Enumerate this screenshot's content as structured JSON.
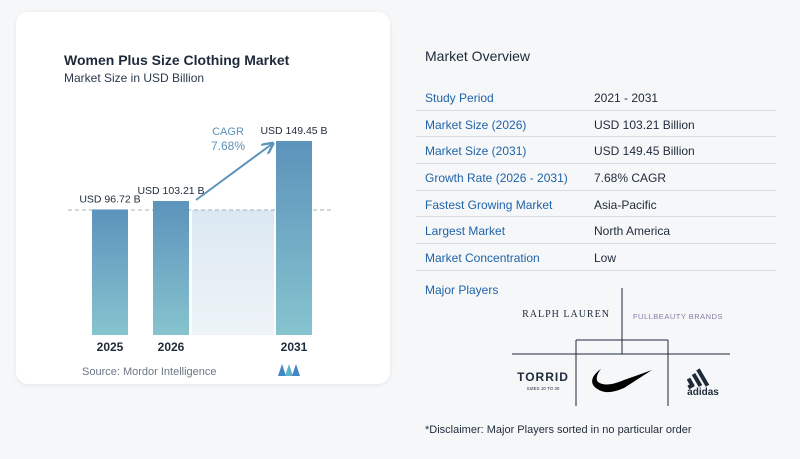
{
  "chart": {
    "title": "Women Plus Size Clothing Market",
    "subtitle": "Market Size in USD Billion",
    "source": "Source:  Mordor Intelligence"
  },
  "chart_data": {
    "type": "bar",
    "categories": [
      "2025",
      "2026",
      "2031"
    ],
    "values": [
      96.72,
      103.21,
      149.45
    ],
    "data_labels": [
      "USD 96.72 B",
      "USD 103.21 B",
      "USD 149.45 B"
    ],
    "annotation": {
      "label": "CAGR",
      "value": "7.68%"
    },
    "title": "Women Plus Size Clothing Market",
    "subtitle": "Market Size in USD Billion",
    "bar_color_top": "#5c93bb",
    "bar_color_bottom": "#86c4cf"
  },
  "overview": {
    "title": "Market Overview",
    "rows": [
      {
        "label": "Study Period",
        "value": "2021 - 2031"
      },
      {
        "label": "Market Size (2026)",
        "value": "USD 103.21 Billion"
      },
      {
        "label": "Market Size (2031)",
        "value": "USD 149.45 Billion"
      },
      {
        "label": "Growth Rate (2026 - 2031)",
        "value": "7.68% CAGR"
      },
      {
        "label": "Fastest Growing Market",
        "value": "Asia-Pacific"
      },
      {
        "label": "Largest Market",
        "value": "North America"
      },
      {
        "label": "Market Concentration",
        "value": "Low"
      }
    ]
  },
  "players": {
    "title": "Major Players",
    "ralph": "RALPH  LAUREN",
    "fullbeauty": "FULLBEAUTY BRANDS",
    "torrid": "TORRID",
    "torrid_sub": "SIZES 10 TO 30",
    "adidas": "adidas"
  },
  "disclaimer": "*Disclaimer: Major Players sorted in no particular order",
  "colors": {
    "accent": "#1f63a8",
    "divider": "#d7dde4"
  }
}
